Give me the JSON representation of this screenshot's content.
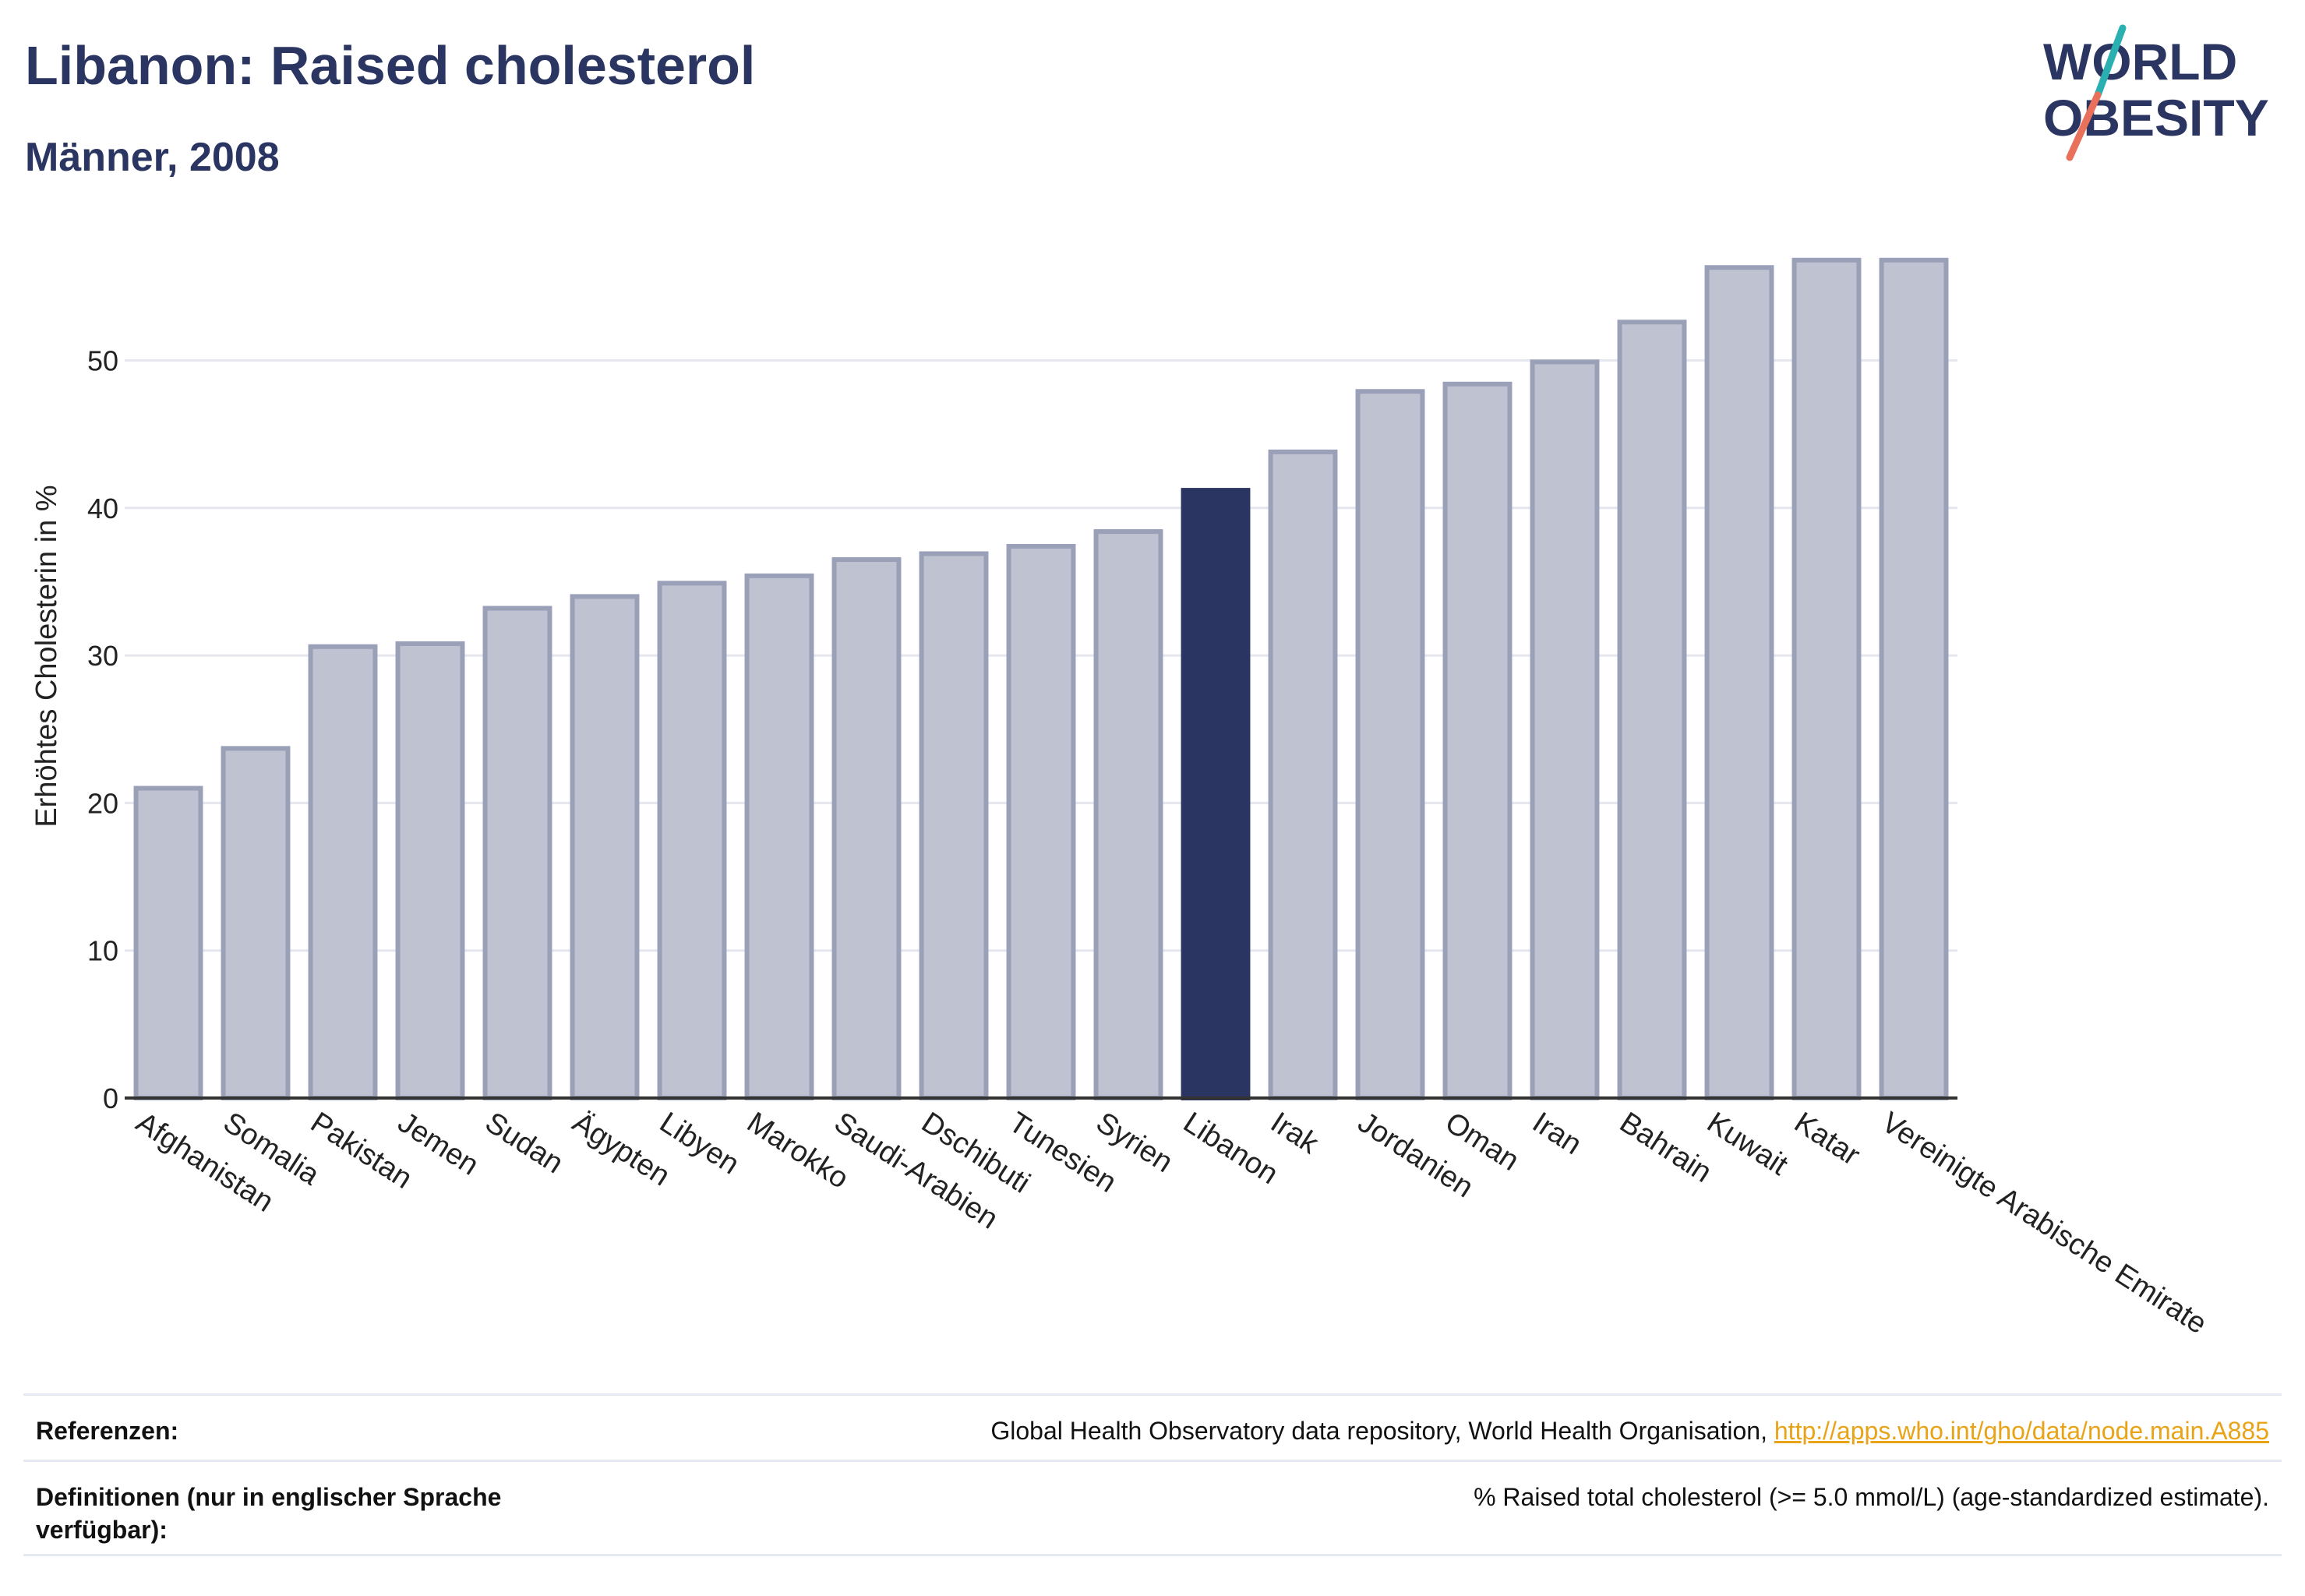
{
  "header": {
    "title": "Libanon: Raised cholesterol",
    "subtitle": "Männer, 2008"
  },
  "logo": {
    "line1": "WORLD",
    "line2": "OBESITY",
    "colors": {
      "text": "#2b3561",
      "slash_teal": "#2ab0b0",
      "slash_coral": "#e9705a"
    }
  },
  "chart_data": {
    "type": "bar",
    "ylabel": "Erhöhtes Cholesterin in %",
    "xlabel": "",
    "ylim": [
      0,
      60
    ],
    "yticks": [
      0,
      10,
      20,
      30,
      40,
      50
    ],
    "grid": true,
    "categories": [
      "Afghanistan",
      "Somalia",
      "Pakistan",
      "Jemen",
      "Sudan",
      "Ägypten",
      "Libyen",
      "Marokko",
      "Saudi-Arabien",
      "Dschibuti",
      "Tunesien",
      "Syrien",
      "Libanon",
      "Irak",
      "Jordanien",
      "Oman",
      "Iran",
      "Bahrain",
      "Kuwait",
      "Katar",
      "Vereinigte Arabische Emirate"
    ],
    "values": [
      21.0,
      23.7,
      30.6,
      30.8,
      33.2,
      34.0,
      34.9,
      35.4,
      36.5,
      36.9,
      37.4,
      38.4,
      41.2,
      43.8,
      47.9,
      48.4,
      49.9,
      52.6,
      56.3,
      56.8,
      56.8
    ],
    "highlight": "Libanon",
    "colors": {
      "bar": "#bfc2d0",
      "bar_border": "#9aa0b8",
      "highlight": "#2b3561",
      "grid": "#e6e6ee",
      "axis": "#2b3561"
    }
  },
  "references": {
    "refs_label": "Referenzen:",
    "refs_text": "Global Health Observatory data repository, World Health Organisation,",
    "refs_link": "http://apps.who.int/gho/data/node.main.A885",
    "defs_label": "Definitionen (nur in englischer Sprache verfügbar):",
    "defs_text": "% Raised total cholesterol (>= 5.0 mmol/L) (age-standardized estimate)."
  }
}
